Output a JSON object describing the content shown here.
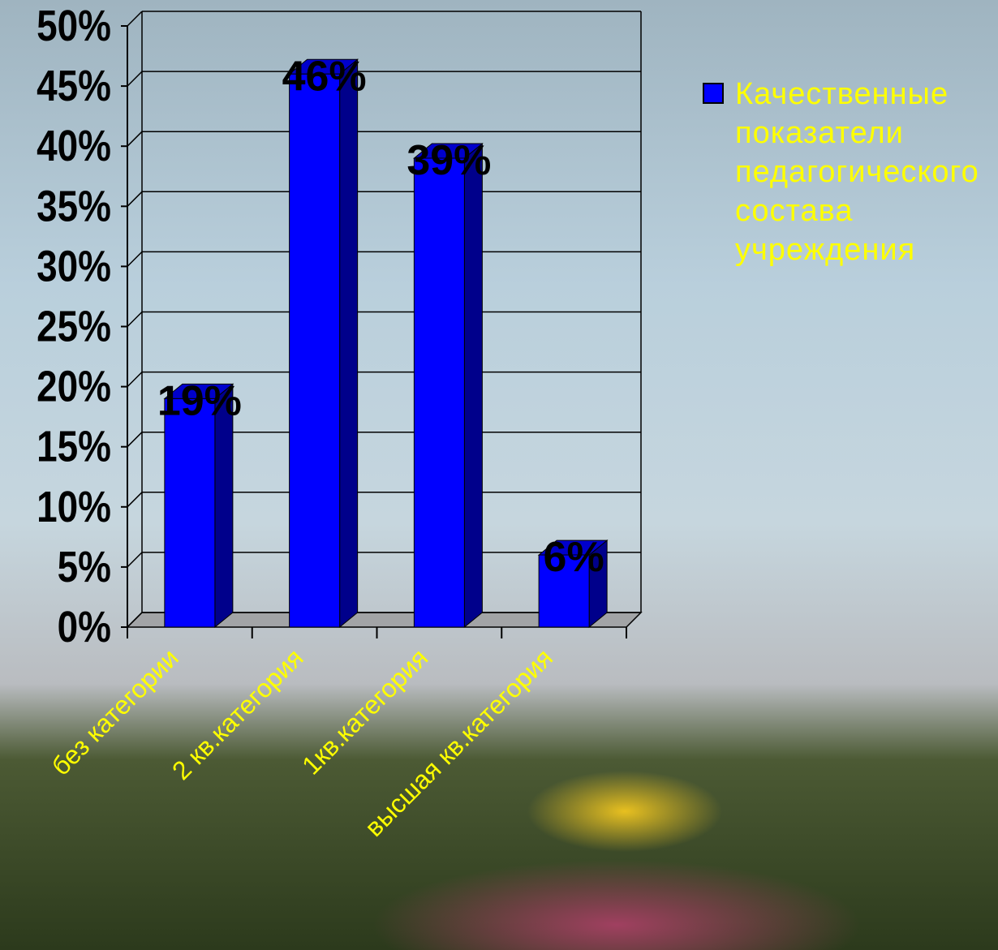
{
  "chart_data": {
    "type": "bar3d",
    "categories": [
      "без категории",
      "2 кв.категория",
      "1кв.категория",
      "высшая кв.категория"
    ],
    "series": [
      {
        "name": "Качественные показатели педагогического состава учреждения",
        "color": "#0000ff",
        "values": [
          19,
          46,
          39,
          6
        ],
        "value_labels": [
          "19%",
          "46%",
          "39%",
          "6%"
        ]
      }
    ],
    "ylim": [
      0,
      50
    ],
    "yticks": [
      {
        "value": 0,
        "label": "0%"
      },
      {
        "value": 5,
        "label": "5%"
      },
      {
        "value": 10,
        "label": "10%"
      },
      {
        "value": 15,
        "label": "15%"
      },
      {
        "value": 20,
        "label": "20%"
      },
      {
        "value": 25,
        "label": "25%"
      },
      {
        "value": 30,
        "label": "30%"
      },
      {
        "value": 35,
        "label": "35%"
      },
      {
        "value": 40,
        "label": "40%"
      },
      {
        "value": 45,
        "label": "45%"
      },
      {
        "value": 50,
        "label": "50%"
      }
    ],
    "grid": true,
    "legend": "right"
  }
}
